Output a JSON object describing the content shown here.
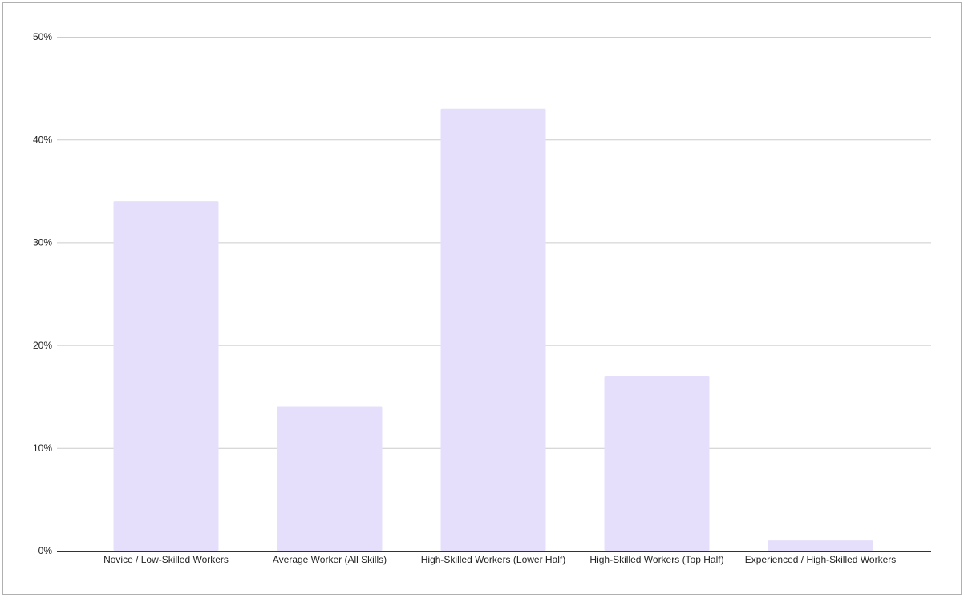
{
  "chart_data": {
    "type": "bar",
    "categories": [
      "Novice / Low-Skilled Workers",
      "Average Worker (All Skills)",
      "High-Skilled Workers (Lower Half)",
      "High-Skilled Workers (Top Half)",
      "Experienced / High-Skilled Workers"
    ],
    "values": [
      34,
      14,
      43,
      17,
      1
    ],
    "color": "#e6dffc",
    "ylim": [
      0,
      50
    ],
    "yticks": [
      {
        "value": 0,
        "label": "0%"
      },
      {
        "value": 10,
        "label": "10%"
      },
      {
        "value": 20,
        "label": "20%"
      },
      {
        "value": 30,
        "label": "30%"
      },
      {
        "value": 40,
        "label": "40%"
      },
      {
        "value": 50,
        "label": "50%"
      }
    ],
    "grid": true
  }
}
